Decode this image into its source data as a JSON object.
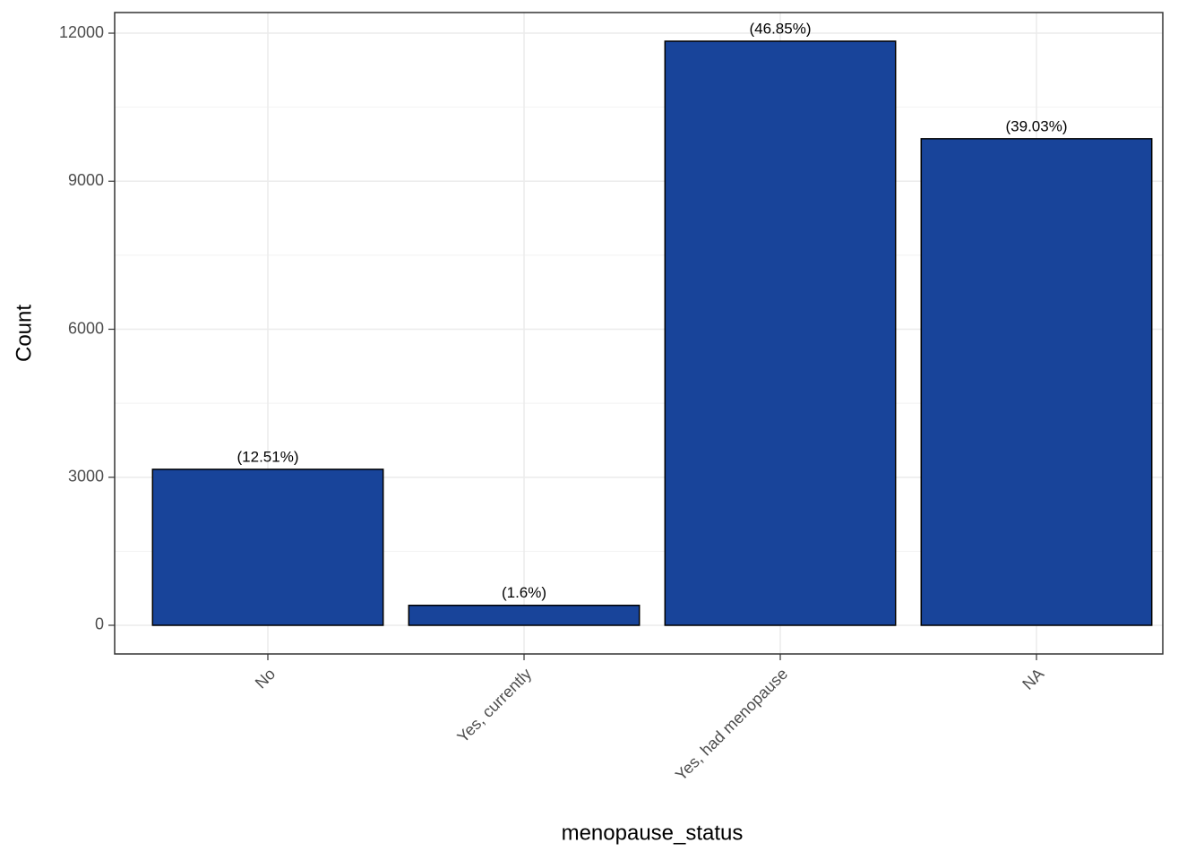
{
  "chart_data": {
    "type": "bar",
    "categories": [
      "No",
      "Yes, currently",
      "Yes, had menopause",
      "NA"
    ],
    "values": [
      3161,
      404,
      11837,
      9861
    ],
    "percent_labels": [
      "(12.51%)",
      "(1.6%)",
      "(46.85%)",
      "(39.03%)"
    ],
    "color": "#18449a",
    "x_label": "menopause_status",
    "y_label": "Count",
    "ylim": [
      -581,
      12418
    ],
    "yticks": [
      0,
      3000,
      6000,
      9000,
      12000
    ],
    "grid": true
  }
}
